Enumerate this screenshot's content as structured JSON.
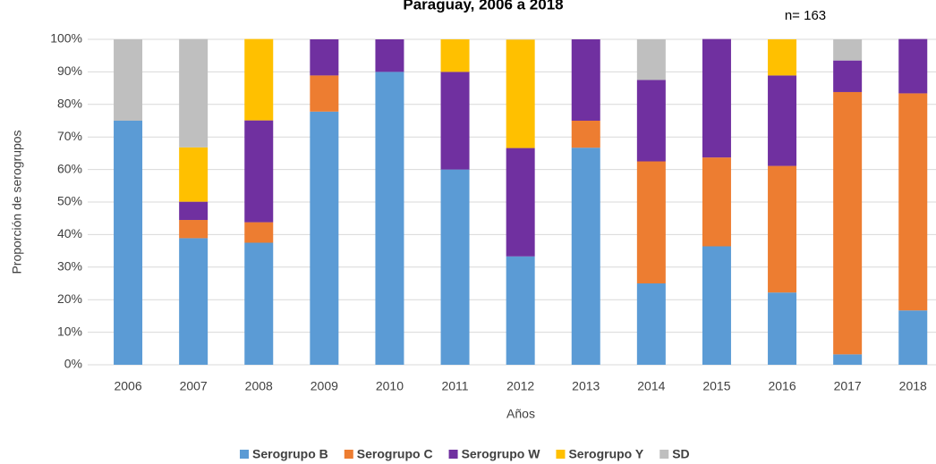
{
  "chart_data": {
    "type": "stacked_bar",
    "title": "Paraguay,  2006 a 2018",
    "annotation": "n= 163",
    "y_label": "Proporción de serogrupos",
    "x_label": "Años",
    "categories": [
      "2006",
      "2007",
      "2008",
      "2009",
      "2010",
      "2011",
      "2012",
      "2013",
      "2014",
      "2015",
      "2016",
      "2017",
      "2018"
    ],
    "series": [
      {
        "name": "Serogrupo B",
        "color": "#5b9bd5",
        "values": [
          75,
          38.9,
          37.5,
          77.8,
          90,
          60,
          33.3,
          66.7,
          25,
          36.4,
          22.2,
          3.2,
          16.7
        ]
      },
      {
        "name": "Serogrupo C",
        "color": "#ed7d31",
        "values": [
          0,
          5.6,
          6.3,
          11.1,
          0,
          0,
          0,
          8.3,
          37.5,
          27.3,
          38.9,
          80.6,
          66.7
        ]
      },
      {
        "name": "Serogrupo W",
        "color": "#7030a0",
        "values": [
          0,
          5.6,
          31.3,
          11.1,
          10,
          30,
          33.3,
          25,
          25,
          36.4,
          27.8,
          9.7,
          16.7
        ]
      },
      {
        "name": "Serogrupo Y",
        "color": "#ffc000",
        "values": [
          0,
          16.7,
          25,
          0,
          0,
          10,
          33.3,
          0,
          0,
          0,
          11.1,
          0,
          0
        ]
      },
      {
        "name": "SD",
        "color": "#bfbfbf",
        "values": [
          25,
          33.3,
          0,
          0,
          0,
          0,
          0,
          0,
          12.5,
          0,
          0,
          6.5,
          0
        ]
      }
    ],
    "ylim": [
      0,
      100
    ],
    "yticks": [
      {
        "value": 0,
        "label": "0%"
      },
      {
        "value": 10,
        "label": "10%"
      },
      {
        "value": 20,
        "label": "20%"
      },
      {
        "value": 30,
        "label": "30%"
      },
      {
        "value": 40,
        "label": "40%"
      },
      {
        "value": 50,
        "label": "50%"
      },
      {
        "value": 60,
        "label": "60%"
      },
      {
        "value": 70,
        "label": "70%"
      },
      {
        "value": 80,
        "label": "80%"
      },
      {
        "value": 90,
        "label": "90%"
      },
      {
        "value": 100,
        "label": "100%"
      }
    ],
    "grid": true,
    "legend": "bottom"
  }
}
